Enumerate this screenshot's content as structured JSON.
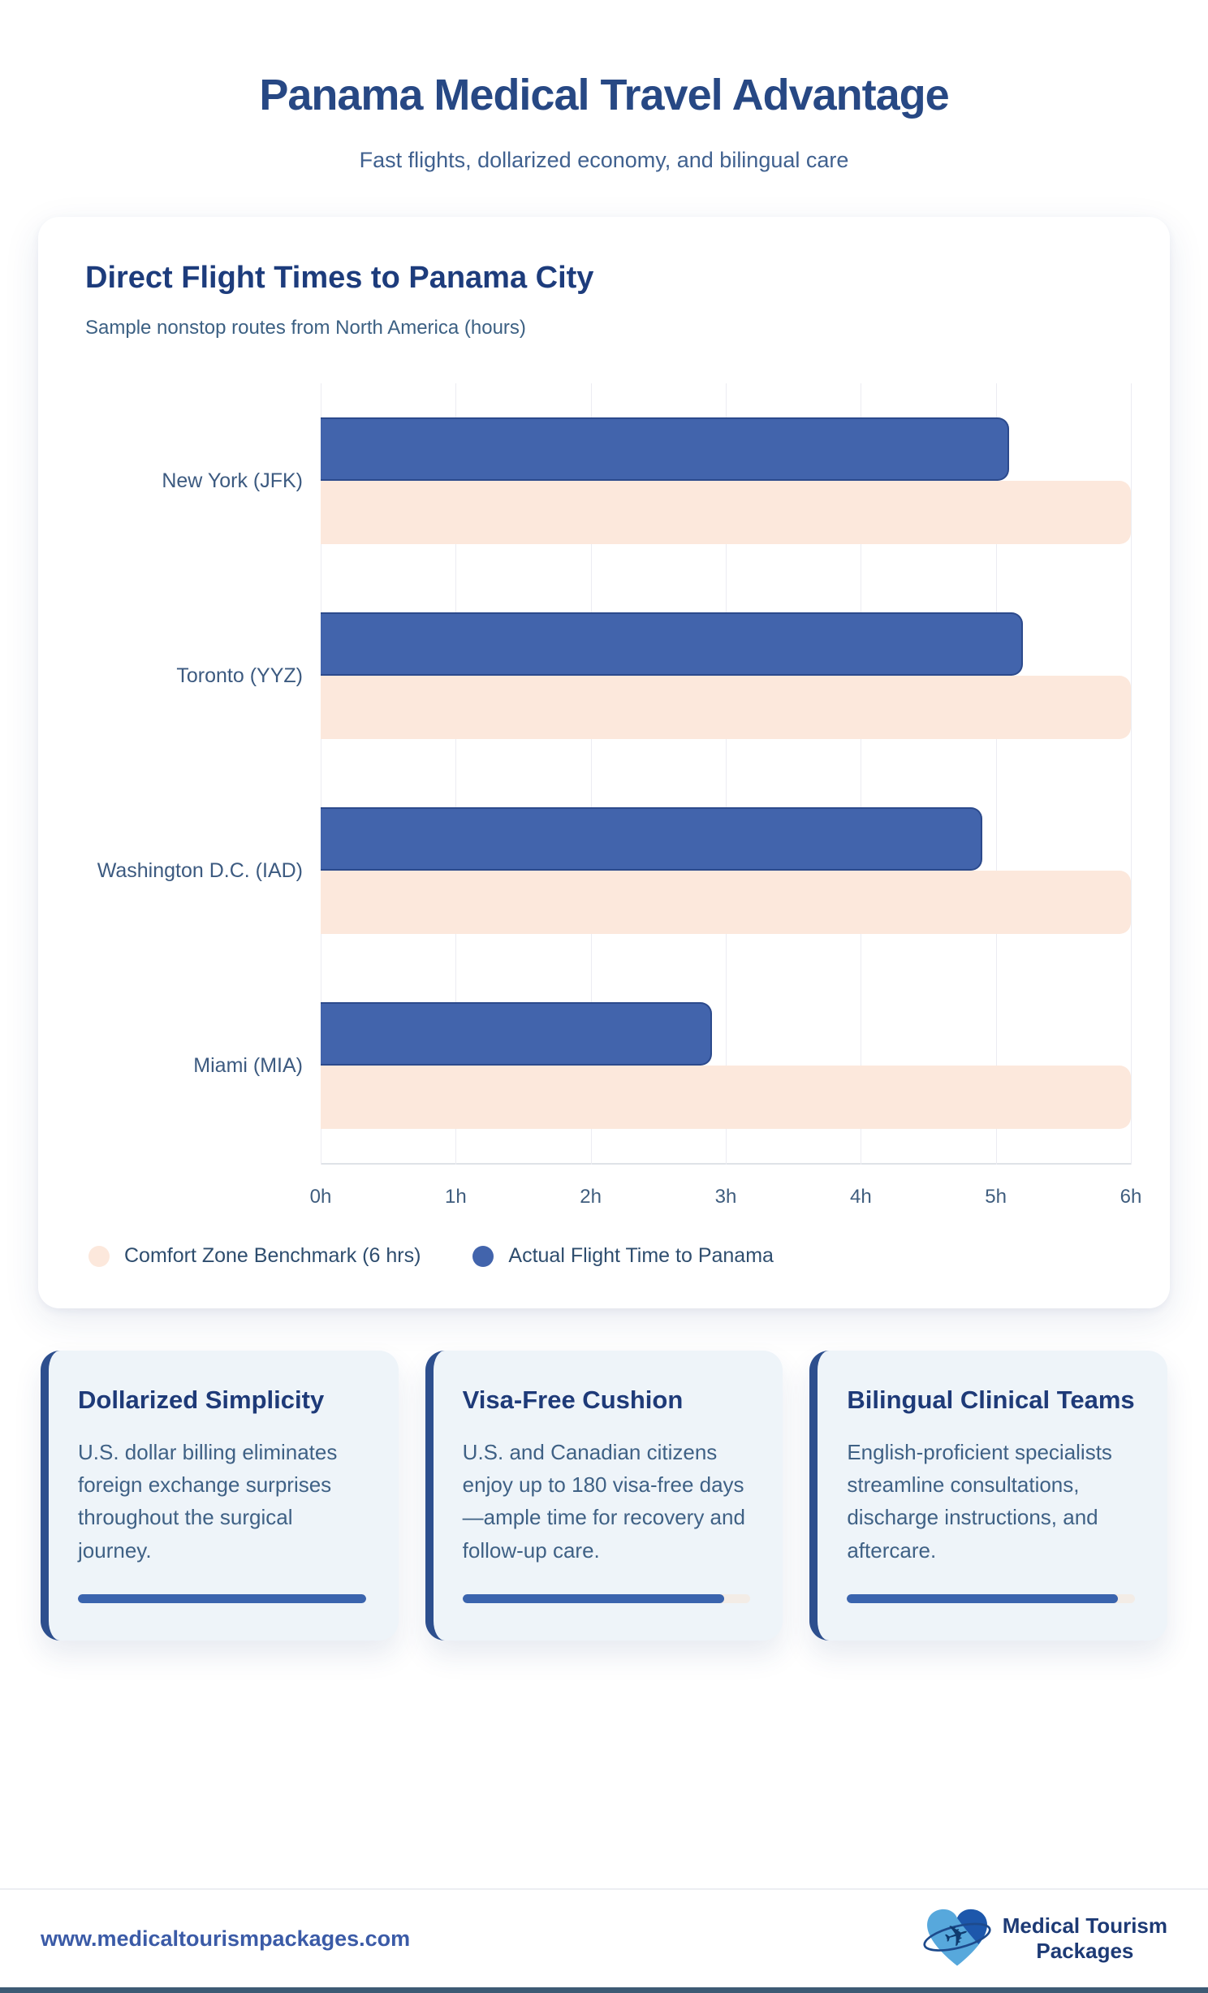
{
  "header": {
    "title": "Panama Medical Travel Advantage",
    "subtitle": "Fast flights, dollarized economy, and bilingual care"
  },
  "chart_card": {
    "title": "Direct Flight Times to Panama City",
    "subtitle": "Sample nonstop routes from North America (hours)"
  },
  "chart_data": {
    "type": "bar",
    "orientation": "horizontal",
    "title": "Direct Flight Times to Panama City",
    "subtitle": "Sample nonstop routes from North America (hours)",
    "categories": [
      "New York (JFK)",
      "Toronto (YYZ)",
      "Washington D.C. (IAD)",
      "Miami (MIA)"
    ],
    "series": [
      {
        "name": "Actual Flight Time to Panama",
        "values": [
          5.1,
          5.2,
          4.9,
          2.9
        ],
        "color": "#4264ac"
      },
      {
        "name": "Comfort Zone Benchmark (6 hrs)",
        "values": [
          6,
          6,
          6,
          6
        ],
        "color": "#fce8dc"
      }
    ],
    "xlim": [
      0,
      6
    ],
    "x_ticks": [
      "0h",
      "1h",
      "2h",
      "3h",
      "4h",
      "5h",
      "6h"
    ],
    "xlabel": "",
    "ylabel": "",
    "grid": true,
    "legend": [
      "Comfort Zone Benchmark (6 hrs)",
      "Actual Flight Time to Panama"
    ],
    "legend_position": "bottom-left"
  },
  "cards": [
    {
      "title": "Dollarized Simplicity",
      "body": "U.S. dollar billing eliminates foreign exchange surprises throughout the surgical journey."
    },
    {
      "title": "Visa-Free Cushion",
      "body": "U.S. and Canadian citizens enjoy up to 180 visa-free days—ample time for recovery and follow-up care."
    },
    {
      "title": "Bilingual Clinical Teams",
      "body": "English-proficient specialists streamline consultations, discharge instructions, and aftercare."
    }
  ],
  "footer": {
    "url": "www.medicaltourismpackages.com",
    "logo_name_line1": "Medical Tourism",
    "logo_name_line2": "Packages"
  },
  "colors": {
    "heading_blue": "#274884",
    "text_blue_gray": "#3d6185",
    "bar_actual": "#4264ac",
    "bar_actual_border": "#2c4a8c",
    "bar_benchmark": "#fce8dc",
    "card_bg": "#eef4f9",
    "card_accent": "#3a64ae",
    "footer_url_blue": "#3b5ba7",
    "bottom_bar": "#3d5a74"
  }
}
